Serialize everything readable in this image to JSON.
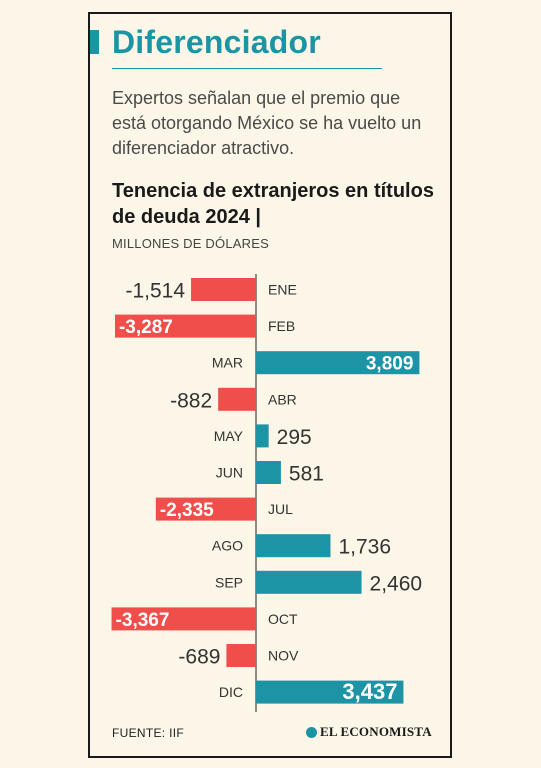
{
  "header": {
    "title": "Diferenciador",
    "description": "Expertos señalan que el premio que está otorgando México se ha vuelto un diferenciador atractivo."
  },
  "chart_data": {
    "type": "bar",
    "orientation": "horizontal-diverging",
    "title": "Tenencia de extranjeros en títulos de deuda 2024 |",
    "subtitle": "MILLONES DE DÓLARES",
    "categories": [
      "ENE",
      "FEB",
      "MAR",
      "ABR",
      "MAY",
      "JUN",
      "JUL",
      "AGO",
      "SEP",
      "OCT",
      "NOV",
      "DIC"
    ],
    "values": [
      -1514,
      -3287,
      3809,
      -882,
      295,
      581,
      -2335,
      1736,
      2460,
      -3367,
      -689,
      3437
    ],
    "labels": [
      "-1,514",
      "-3,287",
      "3,809",
      "-882",
      "295",
      "581",
      "-2,335",
      "1,736",
      "2,460",
      "-3,367",
      "-689",
      "3,437"
    ],
    "positive_color": "#1D93A6",
    "negative_color": "#EF4E4A"
  },
  "footer": {
    "source": "FUENTE: IIF",
    "brand": "EL ECONOMISTA"
  }
}
